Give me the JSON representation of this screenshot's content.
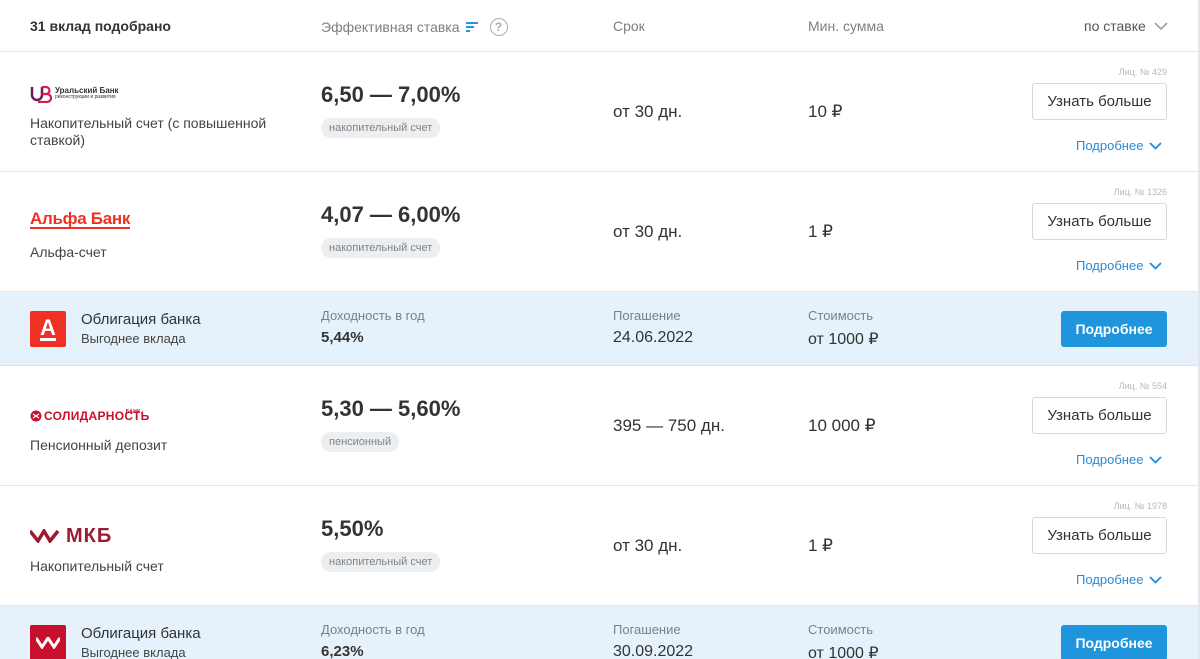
{
  "header": {
    "count": "31 вклад подобрано",
    "rate_col": "Эффективная ставка",
    "help": "?",
    "term_col": "Срок",
    "min_col": "Мин. сумма",
    "sort": "по ставке"
  },
  "rows": [
    {
      "bank": "Уральский Банк",
      "bank_sub": "реконструкции и развития",
      "license": "Лиц. № 429",
      "product": "Накопительный счет (с повышенной ставкой)",
      "rate": "6,50 — 7,00%",
      "tag": "накопительный счет",
      "term": "от 30 дн.",
      "min_sum": "10 ₽",
      "button": "Узнать больше",
      "details": "Подробнее"
    },
    {
      "bank": "Альфа Банк",
      "license": "Лиц. № 1326",
      "product": "Альфа-счет",
      "rate": "4,07 — 6,00%",
      "tag": "накопительный счет",
      "term": "от 30 дн.",
      "min_sum": "1 ₽",
      "button": "Узнать больше",
      "details": "Подробнее"
    },
    {
      "bank": "Солидарность",
      "bank_small": "БАНК",
      "license": "Лиц. № 554",
      "product": "Пенсионный депозит",
      "rate": "5,30 — 5,60%",
      "tag": "пенсионный",
      "term": "395 — 750 дн.",
      "min_sum": "10 000 ₽",
      "button": "Узнать больше",
      "details": "Подробнее"
    },
    {
      "bank": "МКБ",
      "license": "Лиц. № 1978",
      "product": "Накопительный счет",
      "rate": "5,50%",
      "tag": "накопительный счет",
      "term": "от 30 дн.",
      "min_sum": "1 ₽",
      "button": "Узнать больше",
      "details": "Подробнее"
    }
  ],
  "promos": [
    {
      "logo_letter": "А",
      "logo_color": "#ef3124",
      "title": "Облигация банка",
      "subtitle": "Выгоднее вклада",
      "yield_label": "Доходность в год",
      "yield": "5,44%",
      "maturity_label": "Погашение",
      "maturity": "24.06.2022",
      "cost_label": "Стоимость",
      "cost": "от 1000 ₽",
      "button": "Подробнее"
    },
    {
      "logo_color": "#c8102e",
      "title": "Облигация банка",
      "subtitle": "Выгоднее вклада",
      "yield_label": "Доходность в год",
      "yield": "6,23%",
      "maturity_label": "Погашение",
      "maturity": "30.09.2022",
      "cost_label": "Стоимость",
      "cost": "от 1000 ₽",
      "button": "Подробнее"
    }
  ],
  "colors": {
    "accent": "#1e95dd",
    "link": "#2a8ad4",
    "promo_bg": "#e6f2fb",
    "alfa_red": "#ef3124",
    "mkb_red": "#9b1b30"
  }
}
